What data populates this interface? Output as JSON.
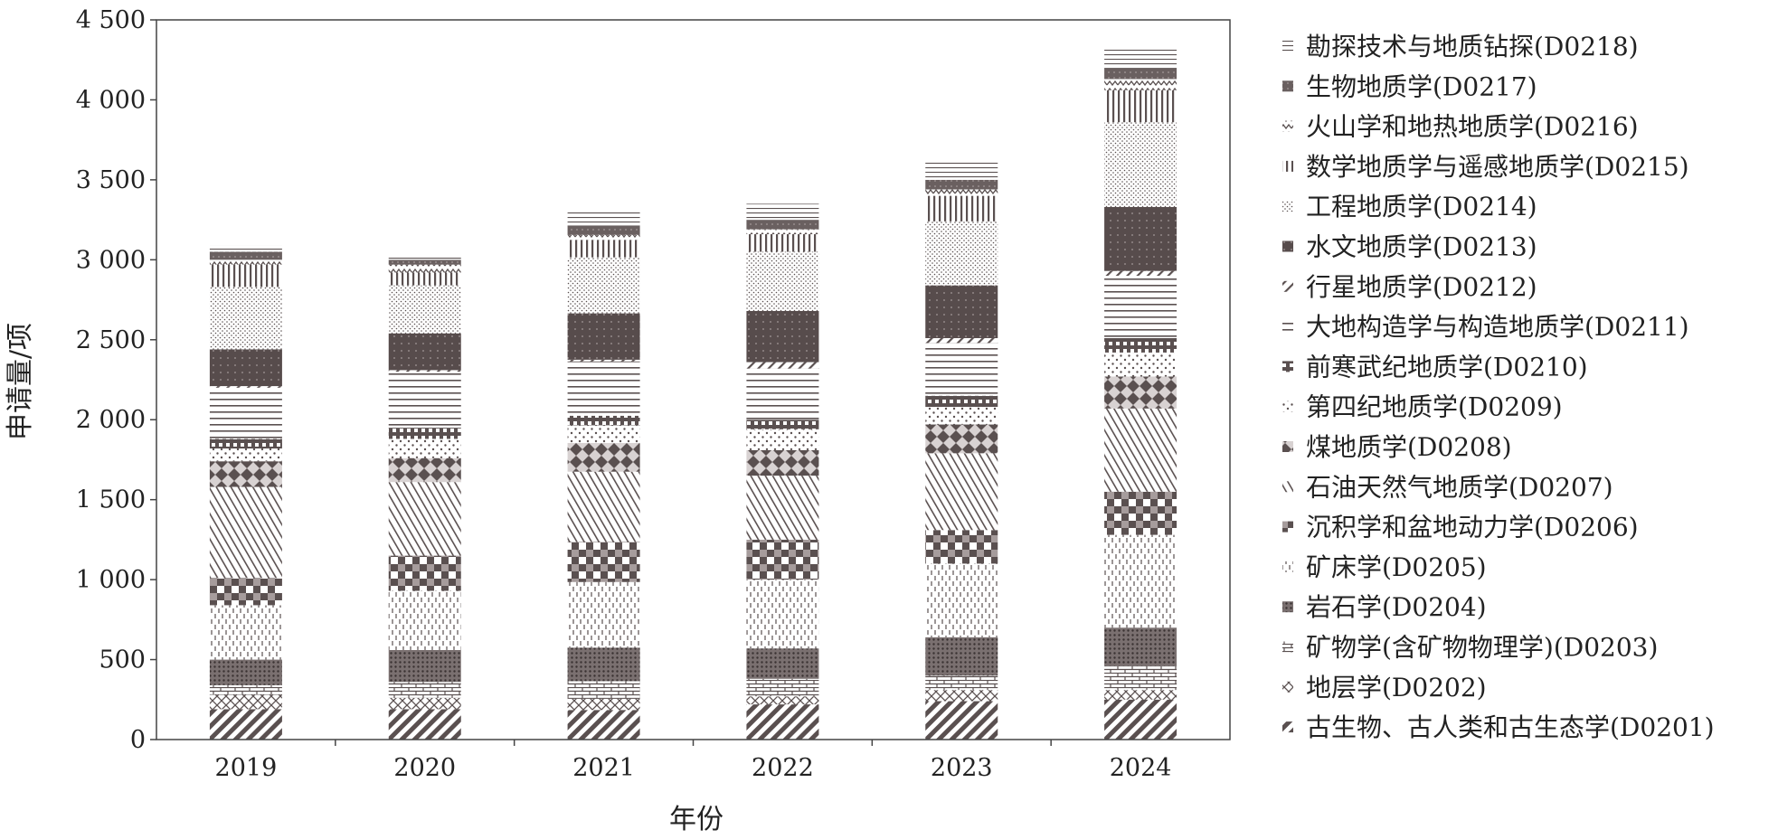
{
  "chart_data": {
    "type": "bar",
    "stacked": true,
    "xlabel": "年份",
    "ylabel": "申请量/项",
    "ylim": [
      0,
      4500
    ],
    "yticks": [
      0,
      500,
      1000,
      1500,
      2000,
      2500,
      3000,
      3500,
      4000,
      4500
    ],
    "ytick_labels": [
      "0",
      "500",
      "1 000",
      "1 500",
      "2 000",
      "2 500",
      "3 000",
      "3 500",
      "4 000",
      "4 500"
    ],
    "categories": [
      "2019",
      "2020",
      "2021",
      "2022",
      "2023",
      "2024"
    ],
    "grid": false,
    "legend_position": "right",
    "series": [
      {
        "name": "古生物、古人类和古生态学(D0201)",
        "pattern": "diag-wide",
        "values": [
          190,
          190,
          185,
          220,
          240,
          250
        ]
      },
      {
        "name": "地层学(D0202)",
        "pattern": "cross-x",
        "values": [
          90,
          70,
          70,
          50,
          70,
          60
        ]
      },
      {
        "name": "矿物学(含矿物物理学)(D0203)",
        "pattern": "brick",
        "values": [
          60,
          100,
          110,
          110,
          90,
          150
        ]
      },
      {
        "name": "岩石学(D0204)",
        "pattern": "dots-dense",
        "values": [
          160,
          200,
          210,
          190,
          240,
          240
        ]
      },
      {
        "name": "矿床学(D0205)",
        "pattern": "dashes-v",
        "values": [
          340,
          370,
          410,
          430,
          460,
          580
        ]
      },
      {
        "name": "沉积学和盆地动力学(D0206)",
        "pattern": "checker",
        "values": [
          170,
          220,
          250,
          250,
          210,
          270
        ]
      },
      {
        "name": "石油天然气地质学(D0207)",
        "pattern": "diag-fine",
        "values": [
          570,
          460,
          440,
          400,
          480,
          520
        ]
      },
      {
        "name": "煤地质学(D0208)",
        "pattern": "diamond",
        "values": [
          160,
          150,
          180,
          160,
          180,
          200
        ]
      },
      {
        "name": "第四纪地质学(D0209)",
        "pattern": "dots-sparse",
        "values": [
          80,
          120,
          110,
          130,
          110,
          150
        ]
      },
      {
        "name": "前寒武纪地质学(D0210)",
        "pattern": "grid",
        "values": [
          60,
          70,
          60,
          60,
          70,
          90
        ]
      },
      {
        "name": "大地构造学与构造地质学(D0211)",
        "pattern": "horizontal",
        "values": [
          320,
          350,
          340,
          320,
          330,
          390
        ]
      },
      {
        "name": "行星地质学(D0212)",
        "pattern": "diag-sparse",
        "values": [
          10,
          10,
          10,
          40,
          30,
          30
        ]
      },
      {
        "name": "水文地质学(D0213)",
        "pattern": "solid-dots",
        "values": [
          230,
          230,
          290,
          320,
          330,
          400
        ]
      },
      {
        "name": "工程地质学(D0214)",
        "pattern": "stipple",
        "values": [
          390,
          300,
          350,
          370,
          400,
          530
        ]
      },
      {
        "name": "数学地质学与遥感地质学(D0215)",
        "pattern": "vertical",
        "values": [
          140,
          80,
          110,
          110,
          160,
          200
        ]
      },
      {
        "name": "火山学和地热地质学(D0216)",
        "pattern": "zigzag",
        "values": [
          30,
          50,
          30,
          30,
          40,
          70
        ]
      },
      {
        "name": "生物地质学(D0217)",
        "pattern": "solid-grain",
        "values": [
          50,
          30,
          60,
          60,
          60,
          70
        ]
      },
      {
        "name": "勘探技术与地质钻探(D0218)",
        "pattern": "horizontal-thin",
        "values": [
          40,
          20,
          90,
          100,
          110,
          130
        ]
      }
    ]
  }
}
